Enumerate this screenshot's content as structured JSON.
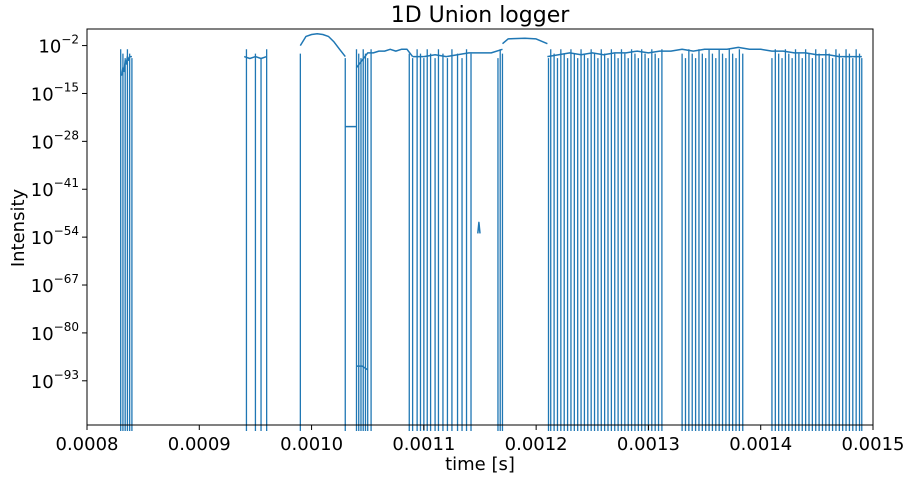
{
  "chart_data": {
    "type": "line",
    "title": "1D Union logger",
    "xlabel": "time [s]",
    "ylabel": "Intensity",
    "xlim": [
      0.0008,
      0.0015
    ],
    "ylim_log10": [
      -105,
      2.5
    ],
    "yscale": "log",
    "grid": false,
    "legend": false,
    "line_color": "#1f77b4",
    "xticks": [
      {
        "value": 0.0008,
        "label": "0.0008"
      },
      {
        "value": 0.0009,
        "label": "0.0009"
      },
      {
        "value": 0.001,
        "label": "0.0010"
      },
      {
        "value": 0.0011,
        "label": "0.0011"
      },
      {
        "value": 0.0012,
        "label": "0.0012"
      },
      {
        "value": 0.0013,
        "label": "0.0013"
      },
      {
        "value": 0.0014,
        "label": "0.0014"
      },
      {
        "value": 0.0015,
        "label": "0.0015"
      }
    ],
    "yticks": [
      {
        "exp": -2,
        "base": "10",
        "sup": "−2"
      },
      {
        "exp": -15,
        "base": "10",
        "sup": "−15"
      },
      {
        "exp": -28,
        "base": "10",
        "sup": "−28"
      },
      {
        "exp": -41,
        "base": "10",
        "sup": "−41"
      },
      {
        "exp": -54,
        "base": "10",
        "sup": "−54"
      },
      {
        "exp": -67,
        "base": "10",
        "sup": "−67"
      },
      {
        "exp": -80,
        "base": "10",
        "sup": "−80"
      },
      {
        "exp": -93,
        "base": "10",
        "sup": "−93"
      }
    ],
    "series": [
      {
        "segments": [
          {
            "x": [
              0.00083,
              0.000831,
              0.000832,
              0.000833,
              0.000834,
              0.000835,
              0.000836,
              0.000837,
              0.000838,
              0.000839,
              0.00084
            ],
            "log10_y": [
              -10,
              -10,
              -8,
              -9,
              -6,
              -7,
              -5,
              -6,
              -5,
              -5,
              -5
            ]
          },
          {
            "x": [
              0.00094,
              0.000945,
              0.00095,
              0.000955,
              0.00096
            ],
            "log10_y": [
              -5,
              -5.5,
              -5,
              -5.5,
              -5
            ]
          },
          {
            "x": [
              0.00099,
              0.000995,
              0.001,
              0.001005,
              0.00101,
              0.001015,
              0.00102,
              0.001025,
              0.00103
            ],
            "log10_y": [
              -2,
              0.5,
              1.0,
              1.2,
              1.0,
              0.5,
              -1,
              -3,
              -5
            ]
          },
          {
            "x": [
              0.00103,
              0.001035,
              0.00104
            ],
            "log10_y": [
              -24,
              -24,
              -24
            ]
          },
          {
            "x": [
              0.00104,
              0.001045,
              0.00105
            ],
            "log10_y": [
              -89,
              -89,
              -90
            ]
          },
          {
            "x": [
              0.00104,
              0.001045,
              0.00105,
              0.001055,
              0.00106,
              0.001065,
              0.00107,
              0.001075,
              0.00108,
              0.001085,
              0.00109
            ],
            "log10_y": [
              -8,
              -6,
              -4,
              -4,
              -3.5,
              -3.5,
              -3,
              -3.5,
              -3,
              -3,
              -5
            ]
          },
          {
            "x": [
              0.00109,
              0.0011,
              0.00111,
              0.00112,
              0.00113,
              0.00114,
              0.00115,
              0.00116,
              0.00117
            ],
            "log10_y": [
              -5,
              -5,
              -4.5,
              -5,
              -4.5,
              -4,
              -4,
              -4,
              -3
            ]
          },
          {
            "x": [
              0.001148,
              0.001149,
              0.00115
            ],
            "log10_y": [
              -53,
              -50,
              -53
            ]
          },
          {
            "x": [
              0.00117,
              0.001175,
              0.00118,
              0.00119,
              0.0012,
              0.00121
            ],
            "log10_y": [
              -1.5,
              -0.2,
              -0.1,
              0,
              -0.2,
              -1.5
            ]
          },
          {
            "x": [
              0.00121,
              0.00122,
              0.00123,
              0.00124,
              0.00125,
              0.00126,
              0.00127,
              0.00128,
              0.00129,
              0.0013,
              0.00131,
              0.00132,
              0.00133,
              0.00134,
              0.00135,
              0.00136,
              0.00137,
              0.00138,
              0.00139,
              0.0014,
              0.00141,
              0.00142,
              0.00143,
              0.00144,
              0.00145,
              0.00146,
              0.00147,
              0.00148,
              0.00149
            ],
            "log10_y": [
              -5,
              -4.5,
              -4,
              -4.5,
              -4,
              -4.5,
              -4,
              -4,
              -3.5,
              -4,
              -3.5,
              -3.5,
              -3,
              -3.5,
              -3,
              -3,
              -3,
              -2.5,
              -3,
              -3,
              -3.5,
              -3.5,
              -4,
              -4,
              -4.5,
              -4.5,
              -5,
              -5,
              -5
            ]
          }
        ],
        "spikes_x": [
          0.00083,
          0.000832,
          0.000834,
          0.000836,
          0.000838,
          0.00084,
          0.000942,
          0.00095,
          0.000955,
          0.00096,
          0.00099,
          0.00103,
          0.00104,
          0.001042,
          0.001044,
          0.001046,
          0.001048,
          0.00105,
          0.001053,
          0.001087,
          0.00109,
          0.001094,
          0.001097,
          0.0011,
          0.001103,
          0.001106,
          0.00111,
          0.001113,
          0.001117,
          0.001121,
          0.001125,
          0.00113,
          0.001134,
          0.001138,
          0.001142,
          0.001166,
          0.001168,
          0.00117,
          0.001211,
          0.001213,
          0.001216,
          0.001219,
          0.001222,
          0.001225,
          0.001228,
          0.001231,
          0.001234,
          0.001237,
          0.00124,
          0.001243,
          0.001246,
          0.001249,
          0.001252,
          0.001255,
          0.001258,
          0.001261,
          0.001264,
          0.001267,
          0.00127,
          0.001273,
          0.001276,
          0.001279,
          0.001282,
          0.001285,
          0.001288,
          0.001291,
          0.001294,
          0.001297,
          0.0013,
          0.001303,
          0.001306,
          0.001309,
          0.001312,
          0.00133,
          0.001333,
          0.001336,
          0.001339,
          0.001342,
          0.001345,
          0.001348,
          0.001351,
          0.001354,
          0.001357,
          0.00136,
          0.001363,
          0.001366,
          0.001369,
          0.001372,
          0.001375,
          0.001378,
          0.001381,
          0.001384,
          0.00141,
          0.001413,
          0.001416,
          0.001419,
          0.001422,
          0.001425,
          0.001428,
          0.001431,
          0.001434,
          0.001437,
          0.00144,
          0.001443,
          0.001446,
          0.001449,
          0.001452,
          0.001455,
          0.001458,
          0.001461,
          0.001464,
          0.001467,
          0.00147,
          0.001473,
          0.001476,
          0.001479,
          0.001482,
          0.001485,
          0.001488,
          0.00149
        ]
      }
    ]
  }
}
